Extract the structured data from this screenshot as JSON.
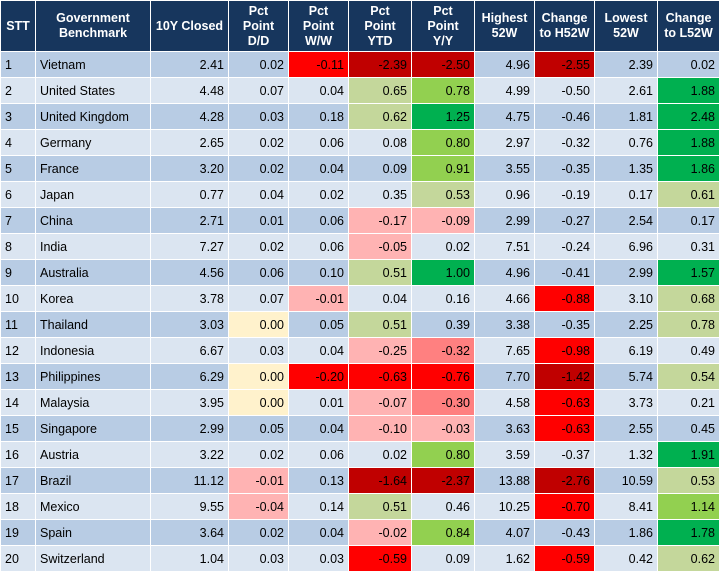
{
  "headers": [
    "STT",
    "Government Benchmark",
    "10Y Closed",
    "Pct Point D/D",
    "Pct Point W/W",
    "Pct Point YTD",
    "Pct Point Y/Y",
    "Highest 52W",
    "Change to H52W",
    "Lowest 52W",
    "Change to L52W"
  ],
  "rows": [
    {
      "stt": "1",
      "country": "Vietnam",
      "closed": "2.41",
      "dd": "0.02",
      "ww": "-0.11",
      "ytd": "-2.39",
      "yy": "-2.50",
      "h52": "4.96",
      "ch52": "-2.55",
      "l52": "2.39",
      "cl52": "0.02"
    },
    {
      "stt": "2",
      "country": "United States",
      "closed": "4.48",
      "dd": "0.07",
      "ww": "0.04",
      "ytd": "0.65",
      "yy": "0.78",
      "h52": "4.99",
      "ch52": "-0.50",
      "l52": "2.61",
      "cl52": "1.88"
    },
    {
      "stt": "3",
      "country": "United Kingdom",
      "closed": "4.28",
      "dd": "0.03",
      "ww": "0.18",
      "ytd": "0.62",
      "yy": "1.25",
      "h52": "4.75",
      "ch52": "-0.46",
      "l52": "1.81",
      "cl52": "2.48"
    },
    {
      "stt": "4",
      "country": "Germany",
      "closed": "2.65",
      "dd": "0.02",
      "ww": "0.06",
      "ytd": "0.08",
      "yy": "0.80",
      "h52": "2.97",
      "ch52": "-0.32",
      "l52": "0.76",
      "cl52": "1.88"
    },
    {
      "stt": "5",
      "country": "France",
      "closed": "3.20",
      "dd": "0.02",
      "ww": "0.04",
      "ytd": "0.09",
      "yy": "0.91",
      "h52": "3.55",
      "ch52": "-0.35",
      "l52": "1.35",
      "cl52": "1.86"
    },
    {
      "stt": "6",
      "country": "Japan",
      "closed": "0.77",
      "dd": "0.04",
      "ww": "0.02",
      "ytd": "0.35",
      "yy": "0.53",
      "h52": "0.96",
      "ch52": "-0.19",
      "l52": "0.17",
      "cl52": "0.61"
    },
    {
      "stt": "7",
      "country": "China",
      "closed": "2.71",
      "dd": "0.01",
      "ww": "0.06",
      "ytd": "-0.17",
      "yy": "-0.09",
      "h52": "2.99",
      "ch52": "-0.27",
      "l52": "2.54",
      "cl52": "0.17"
    },
    {
      "stt": "8",
      "country": "India",
      "closed": "7.27",
      "dd": "0.02",
      "ww": "0.06",
      "ytd": "-0.05",
      "yy": "0.02",
      "h52": "7.51",
      "ch52": "-0.24",
      "l52": "6.96",
      "cl52": "0.31"
    },
    {
      "stt": "9",
      "country": "Australia",
      "closed": "4.56",
      "dd": "0.06",
      "ww": "0.10",
      "ytd": "0.51",
      "yy": "1.00",
      "h52": "4.96",
      "ch52": "-0.41",
      "l52": "2.99",
      "cl52": "1.57"
    },
    {
      "stt": "10",
      "country": "Korea",
      "closed": "3.78",
      "dd": "0.07",
      "ww": "-0.01",
      "ytd": "0.04",
      "yy": "0.16",
      "h52": "4.66",
      "ch52": "-0.88",
      "l52": "3.10",
      "cl52": "0.68"
    },
    {
      "stt": "11",
      "country": "Thailand",
      "closed": "3.03",
      "dd": "0.00",
      "ww": "0.05",
      "ytd": "0.51",
      "yy": "0.39",
      "h52": "3.38",
      "ch52": "-0.35",
      "l52": "2.25",
      "cl52": "0.78"
    },
    {
      "stt": "12",
      "country": "Indonesia",
      "closed": "6.67",
      "dd": "0.03",
      "ww": "0.04",
      "ytd": "-0.25",
      "yy": "-0.32",
      "h52": "7.65",
      "ch52": "-0.98",
      "l52": "6.19",
      "cl52": "0.49"
    },
    {
      "stt": "13",
      "country": "Philippines",
      "closed": "6.29",
      "dd": "0.00",
      "ww": "-0.20",
      "ytd": "-0.63",
      "yy": "-0.76",
      "h52": "7.70",
      "ch52": "-1.42",
      "l52": "5.74",
      "cl52": "0.54"
    },
    {
      "stt": "14",
      "country": "Malaysia",
      "closed": "3.95",
      "dd": "0.00",
      "ww": "0.01",
      "ytd": "-0.07",
      "yy": "-0.30",
      "h52": "4.58",
      "ch52": "-0.63",
      "l52": "3.73",
      "cl52": "0.21"
    },
    {
      "stt": "15",
      "country": "Singapore",
      "closed": "2.99",
      "dd": "0.05",
      "ww": "0.04",
      "ytd": "-0.10",
      "yy": "-0.03",
      "h52": "3.63",
      "ch52": "-0.63",
      "l52": "2.55",
      "cl52": "0.45"
    },
    {
      "stt": "16",
      "country": "Austria",
      "closed": "3.22",
      "dd": "0.02",
      "ww": "0.06",
      "ytd": "0.02",
      "yy": "0.80",
      "h52": "3.59",
      "ch52": "-0.37",
      "l52": "1.32",
      "cl52": "1.91"
    },
    {
      "stt": "17",
      "country": "Brazil",
      "closed": "11.12",
      "dd": "-0.01",
      "ww": "0.13",
      "ytd": "-1.64",
      "yy": "-2.37",
      "h52": "13.88",
      "ch52": "-2.76",
      "l52": "10.59",
      "cl52": "0.53"
    },
    {
      "stt": "18",
      "country": "Mexico",
      "closed": "9.55",
      "dd": "-0.04",
      "ww": "0.14",
      "ytd": "0.51",
      "yy": "0.46",
      "h52": "10.25",
      "ch52": "-0.70",
      "l52": "8.41",
      "cl52": "1.14"
    },
    {
      "stt": "19",
      "country": "Spain",
      "closed": "3.64",
      "dd": "0.02",
      "ww": "0.04",
      "ytd": "-0.02",
      "yy": "0.84",
      "h52": "4.07",
      "ch52": "-0.43",
      "l52": "1.86",
      "cl52": "1.78"
    },
    {
      "stt": "20",
      "country": "Switzerland",
      "closed": "1.04",
      "dd": "0.03",
      "ww": "0.03",
      "ytd": "-0.59",
      "yy": "0.09",
      "h52": "1.62",
      "ch52": "-0.59",
      "l52": "0.42",
      "cl52": "0.62"
    }
  ],
  "colors": {
    "header_bg": "#17365d",
    "row_odd": "#b8cce4",
    "row_even": "#dbe5f1",
    "neutral_zero": "#fff2cc",
    "pos_light": "#c4d79b",
    "pos_mid": "#92d050",
    "pos_strong": "#00b050",
    "neg_light": "#ffb3b3",
    "neg_mid": "#ff8080",
    "neg_bright": "#ff0000",
    "neg_dark": "#c00000"
  }
}
